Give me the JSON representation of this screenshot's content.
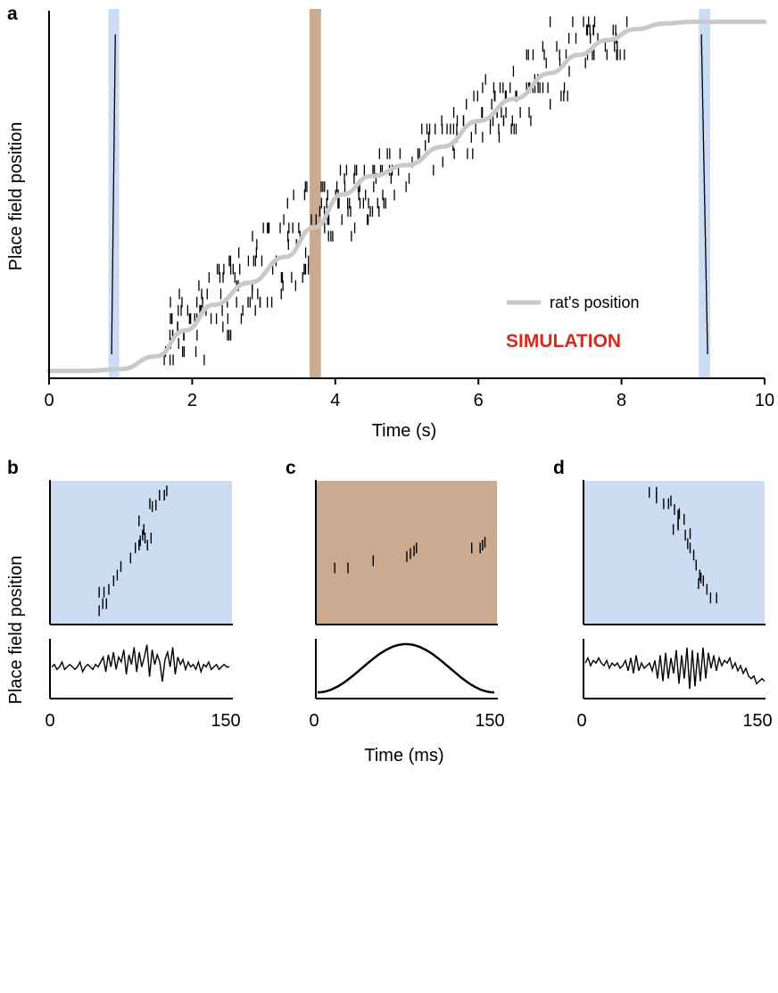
{
  "colors": {
    "replay_band": "#ccdcf3",
    "theta_band": "#cbaa8f",
    "rat_position": "#c9c9c9",
    "simulation_text": "#d42b1e",
    "spike": "#000000"
  },
  "chart_data": [
    {
      "panel": "a",
      "type": "scatter",
      "xlabel": "Time (s)",
      "ylabel": "Place field position",
      "xlim": [
        0,
        10
      ],
      "ylim": [
        0,
        1
      ],
      "xticks": [
        0,
        2,
        4,
        6,
        8,
        10
      ],
      "annotation": "SIMULATION",
      "legend": {
        "placement": "bottom-right",
        "entries": [
          "rat's position"
        ]
      },
      "shaded_intervals": [
        {
          "kind": "replay",
          "x": [
            0.83,
            0.98
          ]
        },
        {
          "kind": "theta",
          "x": [
            3.64,
            3.8
          ]
        },
        {
          "kind": "replay",
          "x": [
            9.08,
            9.24
          ]
        }
      ],
      "series": [
        {
          "name": "rat's position",
          "type": "line",
          "x": [
            0,
            0.5,
            1.0,
            1.5,
            1.9,
            2.3,
            2.8,
            3.3,
            3.7,
            4.1,
            4.5,
            5.0,
            5.5,
            6.0,
            6.5,
            7.0,
            7.4,
            7.8,
            8.2,
            8.6,
            9.0,
            9.5,
            10.0
          ],
          "y": [
            0.02,
            0.02,
            0.025,
            0.06,
            0.13,
            0.2,
            0.26,
            0.33,
            0.41,
            0.5,
            0.55,
            0.58,
            0.63,
            0.7,
            0.76,
            0.83,
            0.88,
            0.92,
            0.95,
            0.965,
            0.97,
            0.97,
            0.97
          ]
        }
      ]
    },
    {
      "panel": "b",
      "type": "scatter",
      "ylabel": "Place field position",
      "xlim": [
        0,
        150
      ],
      "ylim": [
        0,
        1
      ],
      "points": [
        [
          40,
          0.09
        ],
        [
          43,
          0.14
        ],
        [
          46,
          0.14
        ],
        [
          40,
          0.22
        ],
        [
          44,
          0.22
        ],
        [
          48,
          0.24
        ],
        [
          52,
          0.3
        ],
        [
          55,
          0.34
        ],
        [
          58,
          0.4
        ],
        [
          66,
          0.46
        ],
        [
          70,
          0.53
        ],
        [
          73,
          0.55
        ],
        [
          80,
          0.55
        ],
        [
          74,
          0.58
        ],
        [
          78,
          0.6
        ],
        [
          83,
          0.6
        ],
        [
          76,
          0.62
        ],
        [
          77,
          0.66
        ],
        [
          73,
          0.72
        ],
        [
          84,
          0.82
        ],
        [
          82,
          0.84
        ],
        [
          87,
          0.83
        ],
        [
          90,
          0.9
        ],
        [
          94,
          0.9
        ],
        [
          96,
          0.93
        ]
      ]
    },
    {
      "panel": "b",
      "type": "line",
      "xlim": [
        0,
        150
      ],
      "xticks": [
        0,
        150
      ],
      "y": [
        0.5,
        0.55,
        0.45,
        0.5,
        0.6,
        0.45,
        0.5,
        0.55,
        0.5,
        0.45,
        0.5,
        0.6,
        0.4,
        0.5,
        0.55,
        0.5,
        0.45,
        0.55,
        0.5,
        0.6,
        0.7,
        0.4,
        0.75,
        0.5,
        0.8,
        0.45,
        0.7,
        0.6,
        0.85,
        0.35,
        0.75,
        0.55,
        0.9,
        0.4,
        0.8,
        0.5,
        0.7,
        0.95,
        0.3,
        0.85,
        0.55,
        0.75,
        0.6,
        0.2,
        0.65,
        0.8,
        0.5,
        0.9,
        0.35,
        0.7,
        0.55,
        0.65,
        0.45,
        0.6,
        0.5,
        0.55,
        0.45,
        0.6,
        0.4,
        0.55,
        0.5,
        0.6,
        0.45,
        0.5,
        0.55,
        0.45,
        0.5,
        0.55,
        0.5,
        0.5
      ]
    },
    {
      "panel": "c",
      "type": "scatter",
      "xlim": [
        0,
        150
      ],
      "ylim": [
        0,
        1
      ],
      "points": [
        [
          15,
          0.39
        ],
        [
          26,
          0.39
        ],
        [
          47,
          0.44
        ],
        [
          75,
          0.47
        ],
        [
          78,
          0.49
        ],
        [
          81,
          0.51
        ],
        [
          83,
          0.53
        ],
        [
          129,
          0.53
        ],
        [
          136,
          0.53
        ],
        [
          138,
          0.55
        ],
        [
          140,
          0.57
        ]
      ]
    },
    {
      "panel": "c",
      "type": "line",
      "xlim": [
        0,
        150
      ],
      "xticks": [
        0,
        150
      ],
      "xlabel": "Time (ms)",
      "wave": {
        "shape": "cosine",
        "cycles": 1,
        "min_at": 75
      }
    },
    {
      "panel": "d",
      "type": "scatter",
      "xlim": [
        0,
        150
      ],
      "ylim": [
        0,
        1
      ],
      "points": [
        [
          54,
          0.92
        ],
        [
          60,
          0.92
        ],
        [
          60,
          0.88
        ],
        [
          66,
          0.84
        ],
        [
          70,
          0.84
        ],
        [
          72,
          0.86
        ],
        [
          75,
          0.8
        ],
        [
          78,
          0.76
        ],
        [
          79,
          0.77
        ],
        [
          83,
          0.73
        ],
        [
          78,
          0.69
        ],
        [
          78,
          0.7
        ],
        [
          74,
          0.66
        ],
        [
          84,
          0.62
        ],
        [
          88,
          0.63
        ],
        [
          86,
          0.56
        ],
        [
          88,
          0.53
        ],
        [
          91,
          0.48
        ],
        [
          93,
          0.41
        ],
        [
          96,
          0.34
        ],
        [
          99,
          0.3
        ],
        [
          97,
          0.32
        ],
        [
          95,
          0.28
        ],
        [
          102,
          0.24
        ],
        [
          105,
          0.18
        ],
        [
          110,
          0.18
        ]
      ]
    },
    {
      "panel": "d",
      "type": "line",
      "xlim": [
        0,
        150
      ],
      "xticks": [
        0,
        150
      ],
      "y": [
        0.6,
        0.7,
        0.55,
        0.65,
        0.6,
        0.7,
        0.6,
        0.55,
        0.65,
        0.5,
        0.6,
        0.55,
        0.6,
        0.5,
        0.55,
        0.65,
        0.45,
        0.7,
        0.4,
        0.75,
        0.45,
        0.6,
        0.5,
        0.55,
        0.6,
        0.45,
        0.65,
        0.3,
        0.75,
        0.25,
        0.8,
        0.3,
        0.7,
        0.4,
        0.85,
        0.2,
        0.75,
        0.3,
        0.9,
        0.1,
        0.85,
        0.15,
        0.8,
        0.25,
        0.9,
        0.3,
        0.8,
        0.5,
        0.75,
        0.45,
        0.7,
        0.55,
        0.65,
        0.6,
        0.7,
        0.5,
        0.6,
        0.45,
        0.55,
        0.4,
        0.5,
        0.35,
        0.3,
        0.35,
        0.2,
        0.25,
        0.3,
        0.25
      ]
    }
  ]
}
